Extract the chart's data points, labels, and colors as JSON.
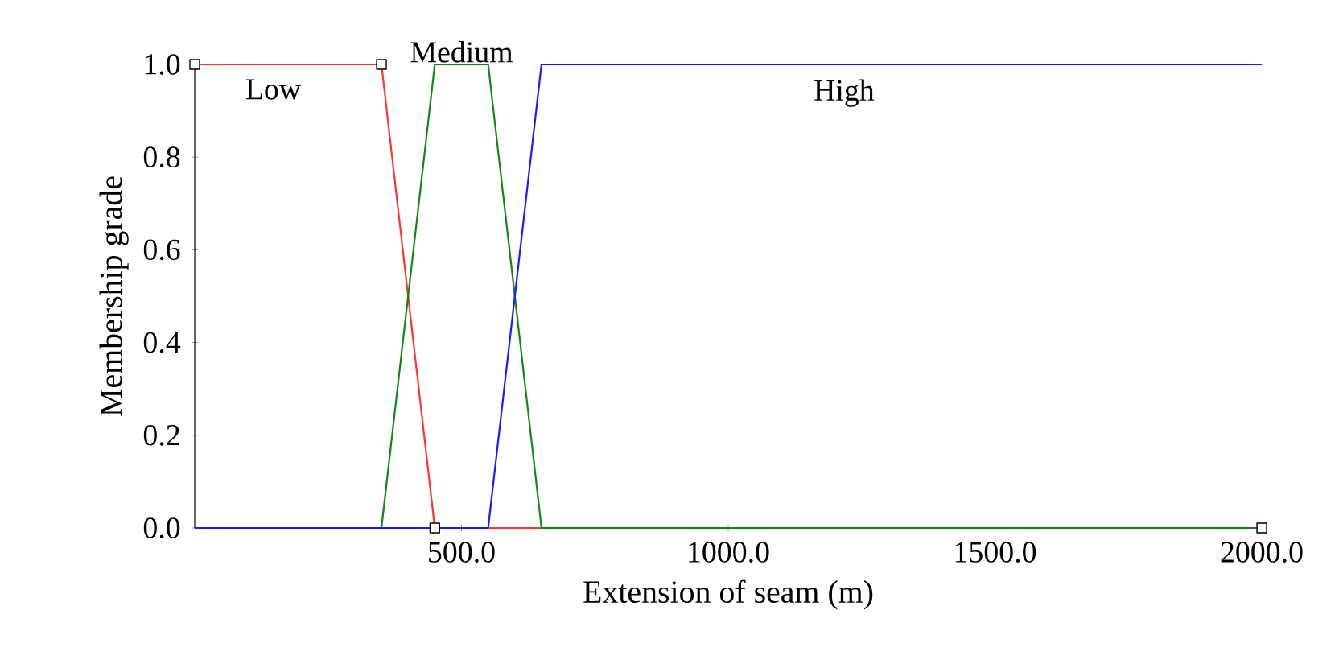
{
  "chart_data": {
    "type": "line",
    "xlabel": "Extension of seam (m)",
    "ylabel": "Membership grade",
    "series": [
      {
        "name": "Low",
        "color": "#ff3333",
        "x": [
          0,
          350,
          450,
          2000
        ],
        "values": [
          1,
          1,
          0,
          0
        ],
        "marker": "square"
      },
      {
        "name": "Medium",
        "color": "#118811",
        "x": [
          0,
          350,
          450,
          550,
          650,
          2000
        ],
        "values": [
          0,
          0,
          1,
          1,
          0,
          0
        ],
        "marker": "none"
      },
      {
        "name": "High",
        "color": "#1a1aff",
        "x": [
          0,
          550,
          650,
          2000
        ],
        "values": [
          0,
          0,
          1,
          1
        ],
        "marker": "none"
      }
    ],
    "xlim": [
      0,
      2000
    ],
    "ylim": [
      0,
      1
    ],
    "xticks": [
      {
        "value": 500,
        "label": "500.0"
      },
      {
        "value": 1000,
        "label": "1000.0"
      },
      {
        "value": 1500,
        "label": "1500.0"
      },
      {
        "value": 2000,
        "label": "2000.0"
      }
    ],
    "yticks": [
      {
        "value": 0,
        "label": "0.0"
      },
      {
        "value": 0.2,
        "label": "0.2"
      },
      {
        "value": 0.4,
        "label": "0.4"
      },
      {
        "value": 0.6,
        "label": "0.6"
      },
      {
        "value": 0.8,
        "label": "0.8"
      },
      {
        "value": 1,
        "label": "1.0"
      }
    ],
    "line_style": "solid"
  }
}
